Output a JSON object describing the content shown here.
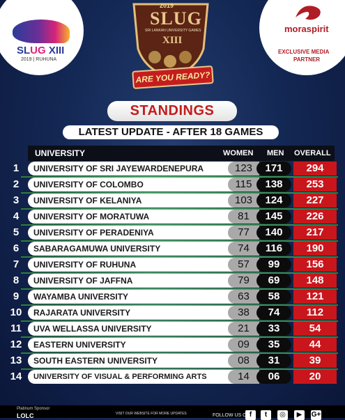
{
  "header": {
    "left_logo": {
      "text_slug": "SL",
      "text_accent": "UG",
      "text_rest": " XIII",
      "subtitle": "2019 | RUHUNA"
    },
    "center_badge": {
      "year": "2019",
      "title": "SLUG",
      "subtitle": "SRI LANKAN UNIVERSITY GAMES",
      "roman": "XIII",
      "ribbon": "ARE YOU READY?"
    },
    "right_logo": {
      "brand": "moraspirit",
      "tag1": "EXCLUSIVE MEDIA",
      "tag2": "PARTNER"
    }
  },
  "standings_title": "STANDINGS",
  "update_text": "LATEST UPDATE  - AFTER 18 GAMES",
  "table": {
    "headers": {
      "university": "UNIVERSITY",
      "women": "WOMEN",
      "men": "MEN",
      "overall": "OVERALL"
    },
    "rows": [
      {
        "rank": "1",
        "name": "UNIVERSITY OF SRI JAYEWARDENEPURA",
        "women": "123",
        "men": "171",
        "overall": "294"
      },
      {
        "rank": "2",
        "name": "UNIVERSITY OF COLOMBO",
        "women": "115",
        "men": "138",
        "overall": "253"
      },
      {
        "rank": "3",
        "name": "UNIVERSITY OF KELANIYA",
        "women": "103",
        "men": "124",
        "overall": "227"
      },
      {
        "rank": "4",
        "name": "UNIVERSITY OF MORATUWA",
        "women": "81",
        "men": "145",
        "overall": "226"
      },
      {
        "rank": "5",
        "name": "UNIVERSITY OF PERADENIYA",
        "women": "77",
        "men": "140",
        "overall": "217"
      },
      {
        "rank": "6",
        "name": "SABARAGAMUWA UNIVERSITY",
        "women": "74",
        "men": "116",
        "overall": "190"
      },
      {
        "rank": "7",
        "name": "UNIVERSITY OF RUHUNA",
        "women": "57",
        "men": "99",
        "overall": "156"
      },
      {
        "rank": "8",
        "name": "UNIVERSITY OF JAFFNA",
        "women": "79",
        "men": "69",
        "overall": "148"
      },
      {
        "rank": "9",
        "name": "WAYAMBA UNIVERSITY",
        "women": "63",
        "men": "58",
        "overall": "121"
      },
      {
        "rank": "10",
        "name": "RAJARATA UNIVERSITY",
        "women": "38",
        "men": "74",
        "overall": "112"
      },
      {
        "rank": "11",
        "name": "UVA WELLASSA UNIVERSITY",
        "women": "21",
        "men": "33",
        "overall": "54"
      },
      {
        "rank": "12",
        "name": "EASTERN UNIVERSITY",
        "women": "09",
        "men": "35",
        "overall": "44"
      },
      {
        "rank": "13",
        "name": "SOUTH EASTERN UNIVERSITY",
        "women": "08",
        "men": "31",
        "overall": "39"
      },
      {
        "rank": "14",
        "name": "UNIVERSITY OF VISUAL & PERFORMING ARTS",
        "women": "14",
        "men": "06",
        "overall": "20"
      }
    ]
  },
  "footer": {
    "sponsor_label": "Platinum Sponsor",
    "sponsor_logo": "LOLC",
    "visit_text": "VISIT OUR WEBSITE FOR MORE UPDATES",
    "follow_text": "FOLLOW US ON",
    "social_icons": [
      "facebook-icon",
      "twitter-icon",
      "instagram-icon",
      "youtube-icon",
      "googleplus-icon"
    ],
    "social_glyphs": [
      "f",
      "t",
      "◎",
      "▶",
      "G+"
    ]
  },
  "colors": {
    "accent_red": "#c8161c",
    "line_green": "#58c069",
    "background": "#142855"
  }
}
